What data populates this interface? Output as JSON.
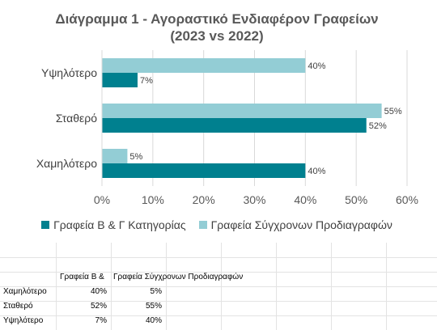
{
  "chart_data": {
    "type": "bar",
    "orientation": "horizontal",
    "title": "Διάγραμμα 1 - Αγοραστικό Ενδιαφέρον Γραφείων",
    "subtitle": "(2023 vs 2022)",
    "categories": [
      "Υψηλότερο",
      "Σταθερό",
      "Χαμηλότερο"
    ],
    "series": [
      {
        "name": "Γραφεία Β & Γ Κατηγορίας",
        "color": "#00808f",
        "values": [
          7,
          52,
          40
        ],
        "labels": [
          "7%",
          "52%",
          "40%"
        ]
      },
      {
        "name": "Γραφεία Σύγχρονων Προδιαγραφών",
        "color": "#93cdd5",
        "values": [
          40,
          55,
          5
        ],
        "labels": [
          "40%",
          "55%",
          "5%"
        ]
      }
    ],
    "xlim": [
      0,
      60
    ],
    "xticks": [
      0,
      10,
      20,
      30,
      40,
      50,
      60
    ],
    "xtick_labels": [
      "0%",
      "10%",
      "20%",
      "30%",
      "40%",
      "50%",
      "60%"
    ],
    "grid": true,
    "legend_position": "bottom"
  },
  "table": {
    "headers": [
      "Γραφεία Β &",
      "Γραφεία Σύγχρονων Προδιαγραφών"
    ],
    "rows": [
      {
        "label": "Χαμηλότερο",
        "v1": "40%",
        "v2": "5%"
      },
      {
        "label": "Σταθερό",
        "v1": "52%",
        "v2": "55%"
      },
      {
        "label": "Υψηλότερο",
        "v1": "7%",
        "v2": "40%"
      }
    ]
  }
}
